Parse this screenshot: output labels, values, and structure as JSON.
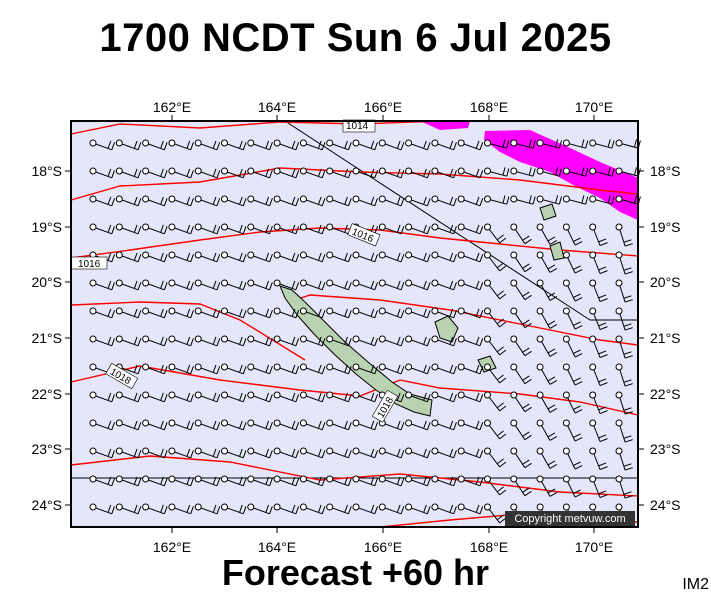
{
  "header": {
    "title": "1700 NCDT Sun 6 Jul 2025"
  },
  "footer": {
    "forecast_label": "Forecast +60 hr",
    "corner_tag": "IM2"
  },
  "map": {
    "copyright": "Copyright metvuw.com",
    "lon_labels": [
      "162°E",
      "164°E",
      "166°E",
      "168°E",
      "170°E"
    ],
    "lat_labels": [
      "18°S",
      "19°S",
      "20°S",
      "21°S",
      "22°S",
      "23°S",
      "24°S"
    ],
    "isobar_labels": [
      "1014",
      "1016",
      "1016",
      "1018",
      "1018"
    ],
    "colors": {
      "ocean": "#e6e6fa",
      "land": "#b9d2b2",
      "isobar": "#ff0000",
      "precip": "#ff00ff",
      "wind_barb": "#000000"
    },
    "icons": [
      "wind-barb-icon",
      "station-circle-icon"
    ]
  }
}
